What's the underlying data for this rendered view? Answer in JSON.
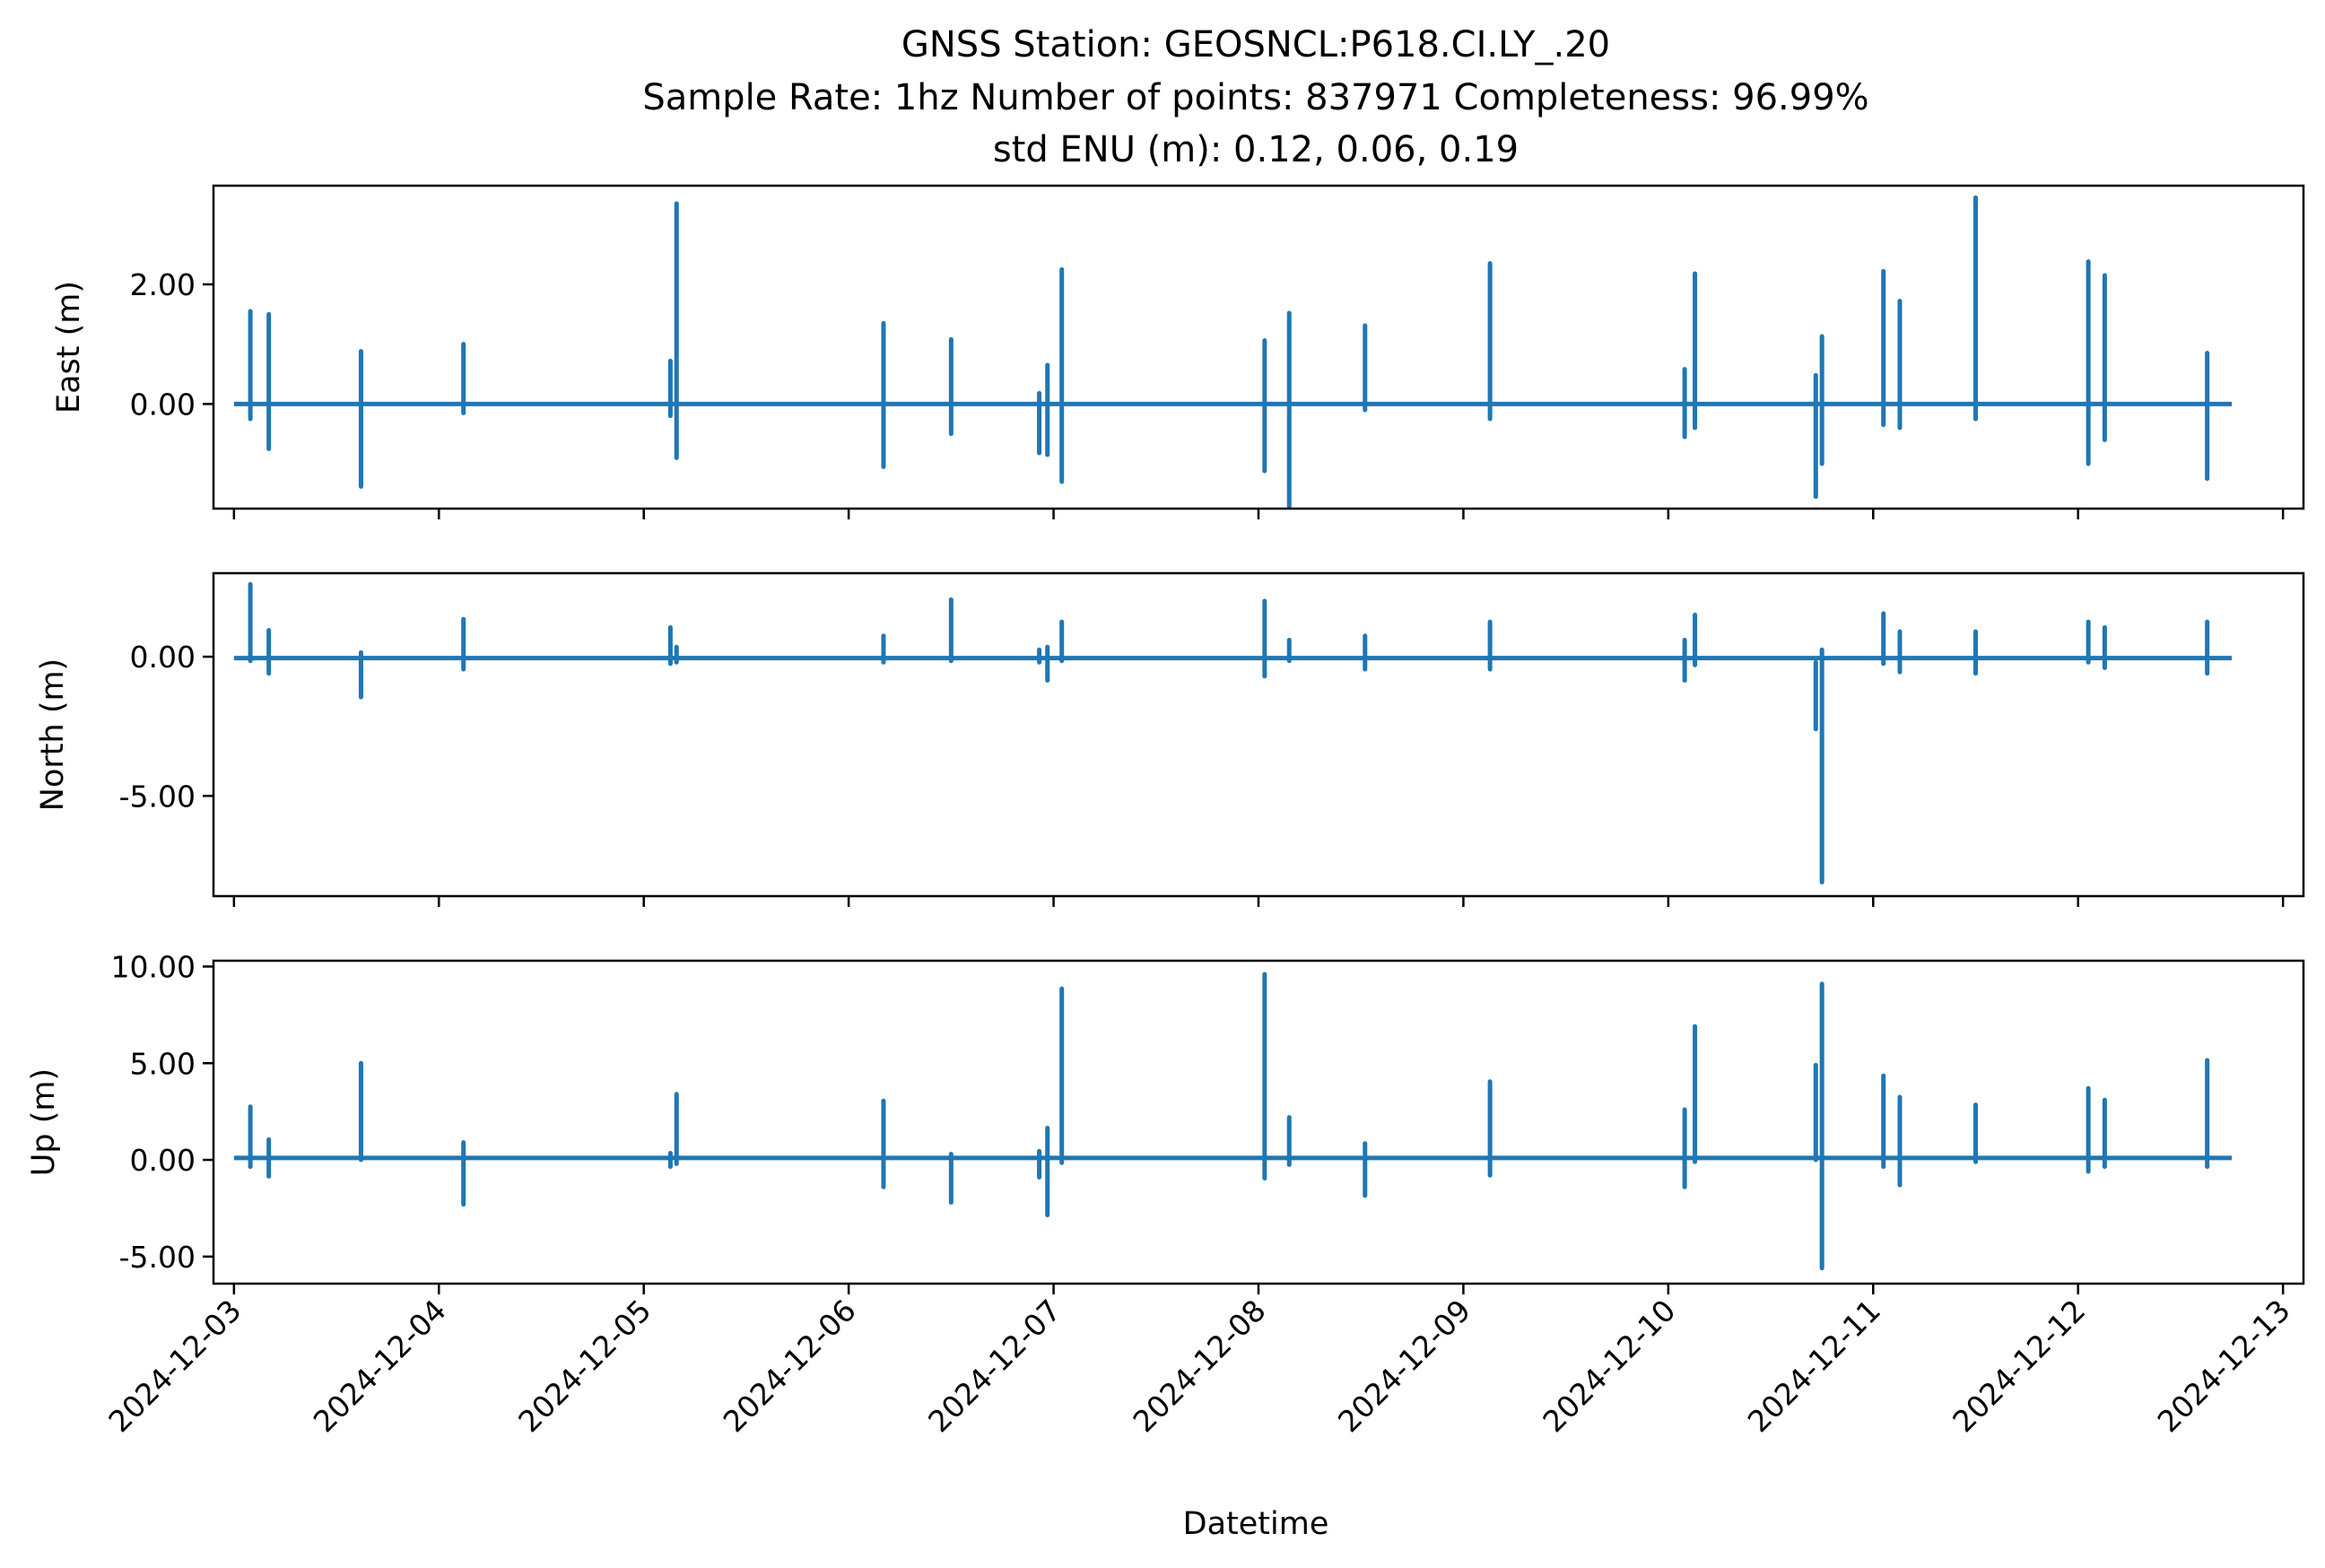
{
  "chart_data": {
    "type": "line",
    "title_lines": [
      "GNSS Station: GEOSNCL:P618.CI.LY_.20",
      "Sample Rate: 1hz   Number of points: 837971    Completeness:  96.99%",
      "std ENU (m):  0.12, 0.06, 0.19"
    ],
    "xlabel": "Datetime",
    "x_ticks": [
      "2024-12-03",
      "2024-12-04",
      "2024-12-05",
      "2024-12-06",
      "2024-12-07",
      "2024-12-08",
      "2024-12-09",
      "2024-12-10",
      "2024-12-11",
      "2024-12-12",
      "2024-12-13"
    ],
    "x_range_days": [
      -0.1,
      10.1
    ],
    "data_range_days": [
      0.0,
      9.75
    ],
    "line_color": "#1f77b4",
    "grid": false,
    "panels": [
      {
        "ylabel": "East (m)",
        "ylim": [
          -1.75,
          3.65
        ],
        "yticks": [
          0,
          2
        ],
        "ytick_labels": [
          "0.00",
          "2.00"
        ],
        "baseline": 0.0,
        "spikes": [
          [
            0.08,
            1.55,
            -0.25
          ],
          [
            0.17,
            1.5,
            -0.75
          ],
          [
            0.62,
            0.88,
            -1.38
          ],
          [
            1.12,
            1.0,
            -0.15
          ],
          [
            2.13,
            0.72,
            -0.2
          ],
          [
            2.16,
            3.35,
            -0.9
          ],
          [
            3.17,
            1.35,
            -1.05
          ],
          [
            3.5,
            1.08,
            -0.5
          ],
          [
            3.93,
            0.18,
            -0.82
          ],
          [
            3.97,
            0.65,
            -0.85
          ],
          [
            4.04,
            2.25,
            -1.3
          ],
          [
            5.03,
            1.06,
            -1.12
          ],
          [
            5.15,
            1.52,
            -1.72
          ],
          [
            5.52,
            1.31,
            -0.1
          ],
          [
            6.13,
            2.35,
            -0.25
          ],
          [
            7.08,
            0.58,
            -0.55
          ],
          [
            7.13,
            2.18,
            -0.4
          ],
          [
            7.72,
            0.48,
            -1.55
          ],
          [
            7.75,
            1.13,
            -1.0
          ],
          [
            8.05,
            2.22,
            -0.35
          ],
          [
            8.13,
            1.72,
            -0.4
          ],
          [
            8.5,
            3.45,
            -0.25
          ],
          [
            9.05,
            2.38,
            -1.0
          ],
          [
            9.13,
            2.15,
            -0.6
          ],
          [
            9.63,
            0.85,
            -1.25
          ]
        ]
      },
      {
        "ylabel": "North (m)",
        "ylim": [
          -8.6,
          3.0
        ],
        "yticks": [
          0,
          -5
        ],
        "ytick_labels": [
          "0.00",
          "-5.00"
        ],
        "baseline": -0.05,
        "spikes": [
          [
            0.08,
            2.6,
            -0.15
          ],
          [
            0.17,
            0.95,
            -0.6
          ],
          [
            0.62,
            0.15,
            -1.45
          ],
          [
            1.12,
            1.35,
            -0.45
          ],
          [
            2.13,
            1.05,
            -0.25
          ],
          [
            2.16,
            0.35,
            -0.2
          ],
          [
            3.17,
            0.75,
            -0.2
          ],
          [
            3.5,
            2.05,
            -0.15
          ],
          [
            3.93,
            0.25,
            -0.2
          ],
          [
            3.97,
            0.35,
            -0.85
          ],
          [
            4.04,
            1.25,
            -0.15
          ],
          [
            5.03,
            2.0,
            -0.7
          ],
          [
            5.15,
            0.6,
            -0.15
          ],
          [
            5.52,
            0.75,
            -0.45
          ],
          [
            6.13,
            1.25,
            -0.45
          ],
          [
            7.08,
            0.6,
            -0.85
          ],
          [
            7.13,
            1.5,
            -0.3
          ],
          [
            7.72,
            -0.2,
            -2.6
          ],
          [
            7.75,
            0.25,
            -8.1
          ],
          [
            8.05,
            1.55,
            -0.25
          ],
          [
            8.13,
            0.9,
            -0.55
          ],
          [
            8.5,
            0.9,
            -0.6
          ],
          [
            9.05,
            1.25,
            -0.2
          ],
          [
            9.13,
            1.05,
            -0.4
          ],
          [
            9.63,
            1.25,
            -0.6
          ]
        ]
      },
      {
        "ylabel": "Up (m)",
        "ylim": [
          -6.4,
          10.3
        ],
        "yticks": [
          -5,
          0,
          5,
          10
        ],
        "ytick_labels": [
          "-5.00",
          "0.00",
          "5.00",
          "10.00"
        ],
        "baseline": 0.1,
        "spikes": [
          [
            0.08,
            2.75,
            -0.35
          ],
          [
            0.17,
            1.05,
            -0.85
          ],
          [
            0.62,
            5.0,
            0.0
          ],
          [
            1.12,
            0.9,
            -2.3
          ],
          [
            2.13,
            0.35,
            -0.35
          ],
          [
            2.16,
            3.4,
            -0.2
          ],
          [
            3.17,
            3.05,
            -1.4
          ],
          [
            3.5,
            0.3,
            -2.2
          ],
          [
            3.93,
            0.45,
            -0.9
          ],
          [
            3.97,
            1.65,
            -2.85
          ],
          [
            4.04,
            8.85,
            -0.15
          ],
          [
            5.03,
            9.6,
            -0.95
          ],
          [
            5.15,
            2.2,
            -0.25
          ],
          [
            5.52,
            0.85,
            -1.85
          ],
          [
            6.13,
            4.05,
            -0.8
          ],
          [
            7.08,
            2.6,
            -1.4
          ],
          [
            7.13,
            6.9,
            -0.1
          ],
          [
            7.72,
            4.9,
            0.0
          ],
          [
            7.75,
            9.1,
            -5.6
          ],
          [
            8.05,
            4.35,
            -0.35
          ],
          [
            8.13,
            3.25,
            -1.3
          ],
          [
            8.5,
            2.85,
            -0.1
          ],
          [
            9.05,
            3.7,
            -0.6
          ],
          [
            9.13,
            3.1,
            -0.35
          ],
          [
            9.63,
            5.15,
            -0.35
          ]
        ]
      }
    ]
  }
}
